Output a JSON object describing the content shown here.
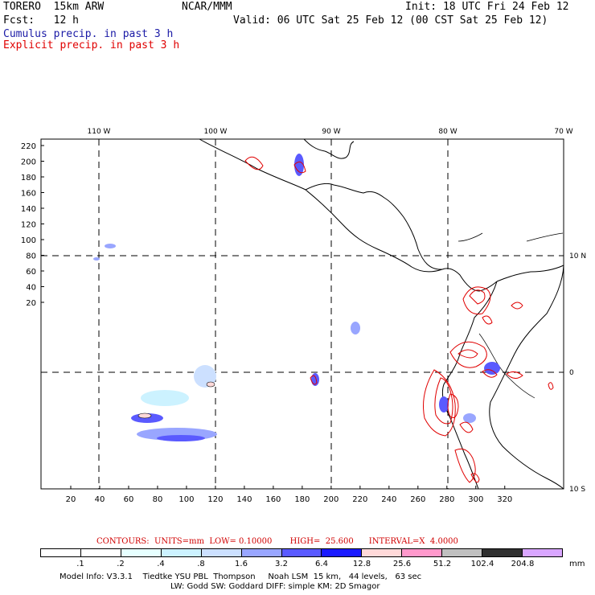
{
  "header": {
    "model_name": "TORERO  15km ARW",
    "org": "NCAR/MMM",
    "init": "Init: 18 UTC Fri 24 Feb 12",
    "fcst": "Fcst:   12 h",
    "valid": "Valid: 06 UTC Sat 25 Feb 12 (00 CST Sat 25 Feb 12)",
    "cumulus_label": "Cumulus precip. in past 3 h",
    "explicit_label": "Explicit precip. in past 3 h"
  },
  "map": {
    "lon_labels": [
      "110 W",
      "100 W",
      "90 W",
      "80 W",
      "70 W"
    ],
    "lat_labels": [
      "10 N",
      "0",
      "10 S"
    ],
    "y_ticks": [
      "220",
      "200",
      "180",
      "160",
      "140",
      "120",
      "100",
      "80",
      "60",
      "40",
      "20"
    ],
    "x_ticks": [
      "20",
      "40",
      "60",
      "80",
      "100",
      "120",
      "140",
      "160",
      "180",
      "200",
      "220",
      "240",
      "260",
      "280",
      "300",
      "320"
    ]
  },
  "legend": {
    "contours": "CONTOURS:  UNITS=mm  LOW= 0.10000       HIGH=  25.600      INTERVAL=X  4.0000",
    "levels": [
      ".1",
      ".2",
      ".4",
      ".8",
      "1.6",
      "3.2",
      "6.4",
      "12.8",
      "25.6",
      "51.2",
      "102.4",
      "204.8"
    ],
    "unit": "mm",
    "colors": [
      "#ffffff",
      "#ffffff",
      "#e6ffff",
      "#ccf2ff",
      "#cce0ff",
      "#99a6ff",
      "#5a5aff",
      "#1a1aff",
      "#ffd9d9",
      "#ff99cc",
      "#c0c0c0",
      "#303030",
      "#d9a6ff"
    ]
  },
  "footer": {
    "line1": "Model Info: V3.3.1    Tiedtke YSU PBL  Thompson     Noah LSM  15 km,   44 levels,   63 sec",
    "line2": "LW: Godd SW: Goddard DIFF: simple KM: 2D Smagor"
  }
}
